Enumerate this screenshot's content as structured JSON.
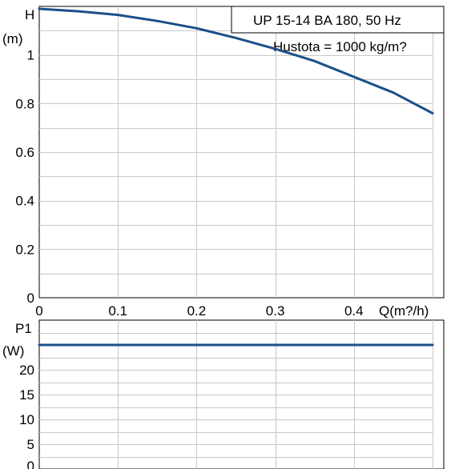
{
  "colors": {
    "curve": "#1b4f8a",
    "grid": "#c8c8c8",
    "axis": "#000000",
    "background": "#ffffff"
  },
  "chart_data": [
    {
      "type": "line",
      "title": "UP 15-14 BA 180, 50 Hz",
      "subtitle": "Hustota = 1000 kg/m?",
      "xlabel": "Q(m?/h)",
      "ylabel_name": "H",
      "ylabel_unit": "(m)",
      "xlim": [
        0,
        0.5
      ],
      "ylim": [
        0,
        1.2
      ],
      "x_ticks": [
        0,
        0.1,
        0.2,
        0.3,
        0.4
      ],
      "x_tick_labels": [
        "0",
        "0.1",
        "0.2",
        "0.3",
        "0.4"
      ],
      "y_ticks": [
        0,
        0.2,
        0.4,
        0.6,
        0.8,
        1
      ],
      "y_tick_labels": [
        "0",
        "0.2",
        "0.4",
        "0.6",
        "0.8",
        "1"
      ],
      "grid": true,
      "series": [
        {
          "x": [
            0,
            0.05,
            0.1,
            0.15,
            0.2,
            0.25,
            0.3,
            0.35,
            0.4,
            0.45,
            0.5
          ],
          "y": [
            1.19,
            1.18,
            1.165,
            1.14,
            1.11,
            1.07,
            1.025,
            0.975,
            0.91,
            0.845,
            0.76
          ]
        }
      ]
    },
    {
      "type": "line",
      "ylabel_name": "P1",
      "ylabel_unit": "(W)",
      "xlim": [
        0,
        0.5
      ],
      "ylim": [
        0,
        30
      ],
      "x_ticks": [
        0,
        0.1,
        0.2,
        0.3,
        0.4
      ],
      "y_ticks": [
        0,
        5,
        10,
        15,
        20
      ],
      "y_tick_labels": [
        "0",
        "5",
        "10",
        "15",
        "20"
      ],
      "grid": true,
      "series": [
        {
          "x": [
            0,
            0.5
          ],
          "y": [
            25,
            25
          ]
        }
      ]
    }
  ]
}
